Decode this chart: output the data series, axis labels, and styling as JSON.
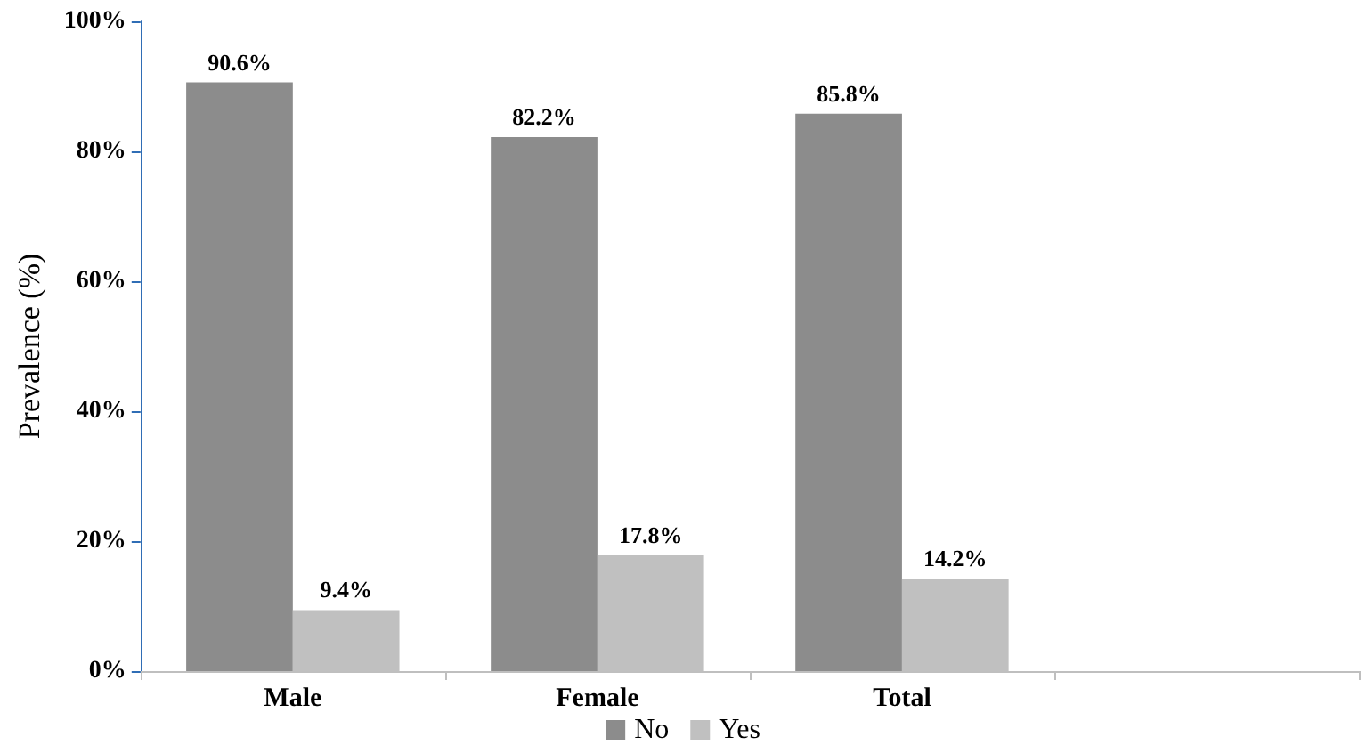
{
  "chart_data": {
    "type": "bar",
    "ylabel": "Prevalence (%)",
    "categories": [
      "Male",
      "Female",
      "Total",
      null
    ],
    "series": [
      {
        "name": "No",
        "color": "#8c8c8c",
        "values": [
          90.6,
          82.2,
          85.8,
          null
        ],
        "value_labels": [
          "90.6%",
          "82.2%",
          "85.8%",
          null
        ]
      },
      {
        "name": "Yes",
        "color": "#c0c0c0",
        "values": [
          9.4,
          17.8,
          14.2,
          null
        ],
        "value_labels": [
          "9.4%",
          "17.8%",
          "14.2%",
          null
        ]
      }
    ],
    "ylim": [
      0,
      100
    ],
    "yticks": [
      {
        "value": 0,
        "label": "0%"
      },
      {
        "value": 20,
        "label": "20%"
      },
      {
        "value": 40,
        "label": "40%"
      },
      {
        "value": 60,
        "label": "60%"
      },
      {
        "value": 80,
        "label": "80%"
      },
      {
        "value": 100,
        "label": "100%"
      }
    ],
    "grid": false,
    "legend": "bottom"
  }
}
